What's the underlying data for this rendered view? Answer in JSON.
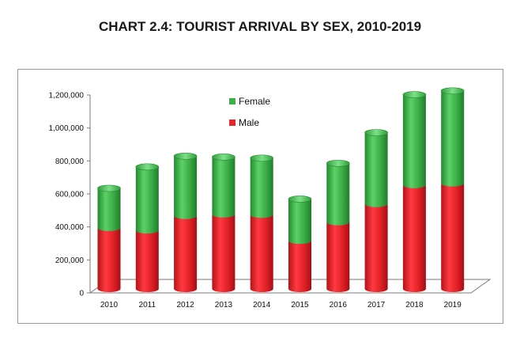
{
  "chart_data": {
    "type": "bar",
    "stacked": true,
    "style": "3d-cylinder",
    "title": "CHART 2.4: TOURIST ARRIVAL BY SEX, 2010-2019",
    "xlabel": "",
    "ylabel": "",
    "categories": [
      "2010",
      "2011",
      "2012",
      "2013",
      "2014",
      "2015",
      "2016",
      "2017",
      "2018",
      "2019"
    ],
    "series": [
      {
        "name": "Male",
        "color": "#e8252c",
        "values": [
          370000,
          355000,
          443000,
          452000,
          450000,
          292000,
          405000,
          515000,
          630000,
          640000
        ]
      },
      {
        "name": "Female",
        "color": "#3fae49",
        "values": [
          240000,
          385000,
          362000,
          348000,
          343000,
          253000,
          357000,
          433000,
          548000,
          561000
        ]
      }
    ],
    "ylim": [
      0,
      1200000
    ],
    "yticks": [
      "0",
      "200,000",
      "400,000",
      "600,000",
      "800,000",
      "1,000,000",
      "1,200,000"
    ],
    "legend_position": "inside-top-center",
    "grid": false
  }
}
